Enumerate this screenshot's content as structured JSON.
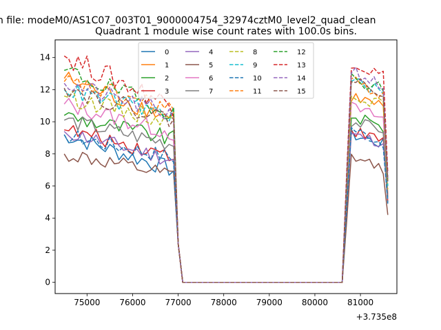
{
  "figure": {
    "suptitle": "n file: modeM0/AS1C07_003T01_9000004754_32974cztM0_level2_quad_clean",
    "background": "#ffffff"
  },
  "chart_data": {
    "type": "line",
    "title": "Quadrant 1 module wise count rates with 100.0s bins.",
    "xlabel": "",
    "ylabel": "",
    "x_offset_label": "+3.735e8",
    "xlim": [
      74300,
      81800
    ],
    "ylim": [
      -0.7,
      15.1
    ],
    "xticks": [
      75000,
      76000,
      77000,
      78000,
      79000,
      80000,
      81000
    ],
    "xtick_labels": [
      "75000",
      "76000",
      "77000",
      "78000",
      "79000",
      "80000",
      "81000"
    ],
    "yticks": [
      0,
      2,
      4,
      6,
      8,
      10,
      12,
      14
    ],
    "ytick_labels": [
      "0",
      "2",
      "4",
      "6",
      "8",
      "10",
      "12",
      "14"
    ],
    "legend": {
      "position": "top",
      "ncol": 4
    },
    "segments": {
      "first_start": 74500,
      "first_end": 76900,
      "drop_x": [
        77000,
        77100
      ],
      "gap_end": 80600,
      "rise_x": [
        80700
      ],
      "second_start": 80800,
      "second_end": 81500,
      "last_x": 81600,
      "step": 100
    },
    "series": [
      {
        "name": "0",
        "color": "#1f77b4",
        "dash": false,
        "base1": 8.0,
        "start1": 9.2,
        "end1": 7.0,
        "base2": 8.6,
        "peak2": 9.2,
        "end2": 4.9,
        "noise": 0.55
      },
      {
        "name": "1",
        "color": "#ff7f0e",
        "dash": false,
        "base1": 10.4,
        "start1": 12.7,
        "end1": 10.2,
        "base2": 10.9,
        "peak2": 11.6,
        "end2": 5.5,
        "noise": 0.6
      },
      {
        "name": "2",
        "color": "#2ca02c",
        "dash": false,
        "base1": 9.0,
        "start1": 10.4,
        "end1": 8.9,
        "base2": 9.6,
        "peak2": 10.4,
        "end2": 5.3,
        "noise": 0.55
      },
      {
        "name": "3",
        "color": "#d62728",
        "dash": false,
        "base1": 8.5,
        "start1": 9.5,
        "end1": 7.9,
        "base2": 8.8,
        "peak2": 9.5,
        "end2": 5.0,
        "noise": 0.5
      },
      {
        "name": "4",
        "color": "#9467bd",
        "dash": false,
        "base1": 8.4,
        "start1": 9.4,
        "end1": 7.6,
        "base2": 8.7,
        "peak2": 9.2,
        "end2": 5.2,
        "noise": 0.5
      },
      {
        "name": "5",
        "color": "#8c564b",
        "dash": false,
        "base1": 6.6,
        "start1": 8.0,
        "end1": 6.6,
        "base2": 7.1,
        "peak2": 7.8,
        "end2": 4.2,
        "noise": 0.5
      },
      {
        "name": "6",
        "color": "#e377c2",
        "dash": false,
        "base1": 9.6,
        "start1": 11.1,
        "end1": 9.3,
        "base2": 10.2,
        "peak2": 10.9,
        "end2": 5.4,
        "noise": 0.55
      },
      {
        "name": "7",
        "color": "#7f7f7f",
        "dash": false,
        "base1": 9.1,
        "start1": 10.1,
        "end1": 8.6,
        "base2": 9.5,
        "peak2": 10.0,
        "end2": 5.3,
        "noise": 0.5
      },
      {
        "name": "8",
        "color": "#bcbd22",
        "dash": true,
        "base1": 10.2,
        "start1": 11.6,
        "end1": 10.0,
        "base2": 11.0,
        "peak2": 11.8,
        "end2": 5.8,
        "noise": 0.55
      },
      {
        "name": "9",
        "color": "#17becf",
        "dash": true,
        "base1": 10.7,
        "start1": 12.0,
        "end1": 10.4,
        "base2": 11.8,
        "peak2": 12.6,
        "end2": 6.0,
        "noise": 0.55
      },
      {
        "name": "10",
        "color": "#1f77b4",
        "dash": true,
        "base1": 8.1,
        "start1": 9.2,
        "end1": 7.8,
        "base2": 8.7,
        "peak2": 9.6,
        "end2": 5.0,
        "noise": 0.5
      },
      {
        "name": "11",
        "color": "#ff7f0e",
        "dash": true,
        "base1": 10.6,
        "start1": 12.5,
        "end1": 10.8,
        "base2": 11.7,
        "peak2": 12.5,
        "end2": 6.2,
        "noise": 0.6
      },
      {
        "name": "12",
        "color": "#2ca02c",
        "dash": true,
        "base1": 11.3,
        "start1": 13.2,
        "end1": 10.6,
        "base2": 12.1,
        "peak2": 12.7,
        "end2": 6.4,
        "noise": 0.6
      },
      {
        "name": "13",
        "color": "#d62728",
        "dash": true,
        "base1": 11.8,
        "start1": 14.1,
        "end1": 11.0,
        "base2": 12.8,
        "peak2": 13.8,
        "end2": 6.8,
        "noise": 0.7
      },
      {
        "name": "14",
        "color": "#9467bd",
        "dash": true,
        "base1": 11.1,
        "start1": 12.4,
        "end1": 10.4,
        "base2": 12.1,
        "peak2": 13.3,
        "end2": 6.5,
        "noise": 0.6
      },
      {
        "name": "15",
        "color": "#8c564b",
        "dash": true,
        "base1": 10.7,
        "start1": 12.1,
        "end1": 10.1,
        "base2": 11.9,
        "peak2": 12.6,
        "end2": 6.3,
        "noise": 0.55
      }
    ]
  }
}
